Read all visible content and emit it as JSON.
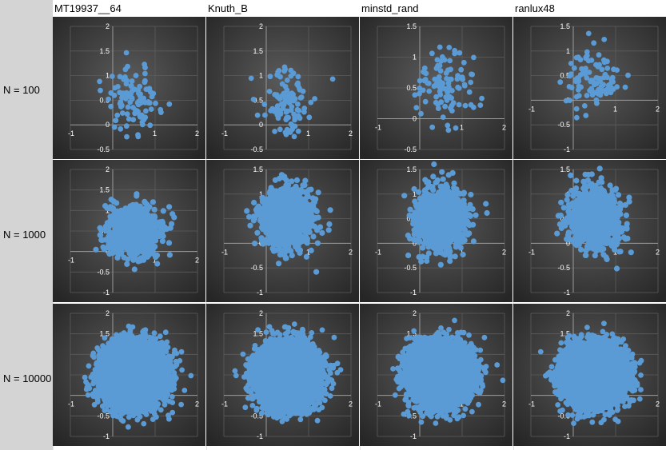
{
  "columns": [
    {
      "label": "MT19937__64"
    },
    {
      "label": "Knuth_B"
    },
    {
      "label": "minstd_rand"
    },
    {
      "label": "ranlux48"
    }
  ],
  "rows": [
    {
      "label": "N = 100"
    },
    {
      "label": "N = 1000"
    },
    {
      "label": "N = 10000"
    }
  ],
  "colors": {
    "point": "#5b9bd5",
    "plot_bg_center": "#5a5a5a",
    "plot_bg_edge": "#262626",
    "axis": "#9a9a9a",
    "gridline": "#5c5c5c",
    "tick_label": "#ffffff"
  },
  "chart_data": [
    {
      "type": "scatter",
      "row": 0,
      "col": 0,
      "n": 100,
      "xlim": [
        -1,
        2
      ],
      "ylim": [
        -0.5,
        2
      ],
      "xticks": [
        "-1",
        "0",
        "1",
        "2"
      ],
      "yticks": [
        "-0.5",
        "0",
        "0.5",
        "1",
        "1.5",
        "2"
      ],
      "center": [
        0.5,
        0.5
      ],
      "spread": 0.32
    },
    {
      "type": "scatter",
      "row": 0,
      "col": 1,
      "n": 100,
      "xlim": [
        -1,
        2
      ],
      "ylim": [
        -0.5,
        2
      ],
      "xticks": [
        "-1",
        "0",
        "1",
        "2"
      ],
      "yticks": [
        "-0.5",
        "0",
        "0.5",
        "1",
        "1.5",
        "2"
      ],
      "center": [
        0.55,
        0.5
      ],
      "spread": 0.32
    },
    {
      "type": "scatter",
      "row": 0,
      "col": 2,
      "n": 100,
      "xlim": [
        -1,
        2
      ],
      "ylim": [
        -0.5,
        1.5
      ],
      "xticks": [
        "-1",
        "0",
        "1",
        "2"
      ],
      "yticks": [
        "-0.5",
        "0",
        "0.5",
        "1",
        "1.5"
      ],
      "center": [
        0.6,
        0.5
      ],
      "spread": 0.32
    },
    {
      "type": "scatter",
      "row": 0,
      "col": 3,
      "n": 100,
      "xlim": [
        -1,
        2
      ],
      "ylim": [
        -1,
        1.5
      ],
      "xticks": [
        "-1",
        "0",
        "1",
        "2"
      ],
      "yticks": [
        "-1",
        "-0.5",
        "0",
        "0.5",
        "1",
        "1.5"
      ],
      "center": [
        0.5,
        0.5
      ],
      "spread": 0.32
    },
    {
      "type": "scatter",
      "row": 1,
      "col": 0,
      "n": 1000,
      "xlim": [
        -1,
        2
      ],
      "ylim": [
        -1,
        2
      ],
      "xticks": [
        "-1",
        "0",
        "1",
        "2"
      ],
      "yticks": [
        "-1",
        "-0.5",
        "0",
        "0.5",
        "1",
        "1.5",
        "2"
      ],
      "center": [
        0.5,
        0.5
      ],
      "spread": 0.3
    },
    {
      "type": "scatter",
      "row": 1,
      "col": 1,
      "n": 1000,
      "xlim": [
        -1,
        2
      ],
      "ylim": [
        -1,
        1.5
      ],
      "xticks": [
        "-1",
        "0",
        "1",
        "2"
      ],
      "yticks": [
        "-1",
        "-0.5",
        "0",
        "0.5",
        "1",
        "1.5"
      ],
      "center": [
        0.5,
        0.5
      ],
      "spread": 0.3
    },
    {
      "type": "scatter",
      "row": 1,
      "col": 2,
      "n": 1000,
      "xlim": [
        -1,
        2
      ],
      "ylim": [
        -1,
        1.5
      ],
      "xticks": [
        "-1",
        "0",
        "1",
        "2"
      ],
      "yticks": [
        "-1",
        "-0.5",
        "0",
        "0.5",
        "1",
        "1.5"
      ],
      "center": [
        0.5,
        0.5
      ],
      "spread": 0.3
    },
    {
      "type": "scatter",
      "row": 1,
      "col": 3,
      "n": 1000,
      "xlim": [
        -1,
        2
      ],
      "ylim": [
        -1,
        1.5
      ],
      "xticks": [
        "-1",
        "0",
        "1",
        "2"
      ],
      "yticks": [
        "-1",
        "-0.5",
        "0",
        "0.5",
        "1",
        "1.5"
      ],
      "center": [
        0.5,
        0.5
      ],
      "spread": 0.3
    },
    {
      "type": "scatter",
      "row": 2,
      "col": 0,
      "n": 10000,
      "xlim": [
        -1,
        2
      ],
      "ylim": [
        -1,
        2
      ],
      "xticks": [
        "-1",
        "0",
        "1",
        "2"
      ],
      "yticks": [
        "-1",
        "-0.5",
        "0",
        "0.5",
        "1",
        "1.5",
        "2"
      ],
      "center": [
        0.5,
        0.5
      ],
      "spread": 0.32
    },
    {
      "type": "scatter",
      "row": 2,
      "col": 1,
      "n": 10000,
      "xlim": [
        -1,
        2
      ],
      "ylim": [
        -1,
        2
      ],
      "xticks": [
        "-1",
        "0",
        "1",
        "2"
      ],
      "yticks": [
        "-1",
        "-0.5",
        "0",
        "0.5",
        "1",
        "1.5",
        "2"
      ],
      "center": [
        0.5,
        0.5
      ],
      "spread": 0.32
    },
    {
      "type": "scatter",
      "row": 2,
      "col": 2,
      "n": 10000,
      "xlim": [
        -1,
        2
      ],
      "ylim": [
        -1,
        2
      ],
      "xticks": [
        "-1",
        "0",
        "1",
        "2"
      ],
      "yticks": [
        "-1",
        "-0.5",
        "0",
        "0.5",
        "1",
        "1.5",
        "2"
      ],
      "center": [
        0.5,
        0.5
      ],
      "spread": 0.32
    },
    {
      "type": "scatter",
      "row": 2,
      "col": 3,
      "n": 10000,
      "xlim": [
        -1,
        2
      ],
      "ylim": [
        -1,
        2
      ],
      "xticks": [
        "-1",
        "0",
        "1",
        "2"
      ],
      "yticks": [
        "-1",
        "-0.5",
        "0",
        "0.5",
        "1",
        "1.5",
        "2"
      ],
      "center": [
        0.5,
        0.5
      ],
      "spread": 0.32
    }
  ]
}
